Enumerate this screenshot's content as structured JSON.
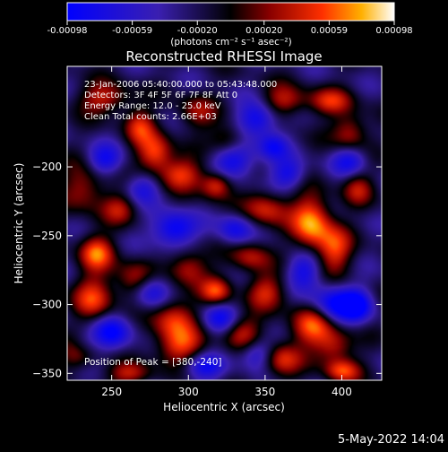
{
  "chart_data": {
    "type": "heatmap",
    "title": "Reconstructed RHESSI Image",
    "xlabel": "Heliocentric X (arcsec)",
    "ylabel": "Heliocentric Y (arcsec)",
    "xlim": [
      221,
      426
    ],
    "ylim": [
      -355,
      -127
    ],
    "x_ticks": [
      250,
      300,
      350,
      400
    ],
    "y_ticks": [
      -200,
      -250,
      -300,
      -350
    ],
    "colorbar": {
      "ticks": [
        -0.00098,
        -0.00059,
        -0.0002,
        0.0002,
        0.00059,
        0.00098
      ],
      "tick_labels": [
        "-0.00098",
        "-0.00059",
        "-0.00020",
        "0.00020",
        "0.00059",
        "0.00098"
      ],
      "unit_label": "(photons cm⁻² s⁻¹ asec⁻²)",
      "range": [
        -0.00098,
        0.00098
      ],
      "colors": [
        "#0000ff",
        "#3a1fb0",
        "#000000",
        "#8a0000",
        "#ff3000",
        "#ffb000",
        "#ffffff"
      ]
    },
    "annotations": [
      "23-Jan-2006 05:40:00.000 to 05:43:48.000",
      "Detectors: 3F 4F 5F 6F 7F 8F  Att 0",
      "Energy Range: 12.0 - 25.0 keV",
      "Clean     Total counts: 2.66E+03"
    ],
    "peak_label": "Position of Peak = [380,-240]",
    "peak": {
      "x": 380,
      "y": -240
    },
    "blobs": [
      {
        "x": 380,
        "y": -240,
        "v": 0.00098,
        "sx": 9,
        "sy": 14
      },
      {
        "x": 395,
        "y": -260,
        "v": 0.0007,
        "sx": 8,
        "sy": 12
      },
      {
        "x": 350,
        "y": -230,
        "v": 0.00065,
        "sx": 10,
        "sy": 9
      },
      {
        "x": 362,
        "y": -152,
        "v": 0.0006,
        "sx": 10,
        "sy": 8
      },
      {
        "x": 392,
        "y": -152,
        "v": 0.0006,
        "sx": 10,
        "sy": 7
      },
      {
        "x": 405,
        "y": -175,
        "v": 0.0006,
        "sx": 8,
        "sy": 10
      },
      {
        "x": 278,
        "y": -190,
        "v": 0.0008,
        "sx": 8,
        "sy": 10
      },
      {
        "x": 295,
        "y": -205,
        "v": 0.0007,
        "sx": 10,
        "sy": 8
      },
      {
        "x": 318,
        "y": -213,
        "v": 0.00075,
        "sx": 7,
        "sy": 7
      },
      {
        "x": 268,
        "y": -170,
        "v": 0.0006,
        "sx": 7,
        "sy": 9
      },
      {
        "x": 245,
        "y": -150,
        "v": 0.0006,
        "sx": 12,
        "sy": 8
      },
      {
        "x": 232,
        "y": -215,
        "v": 0.00055,
        "sx": 10,
        "sy": 12
      },
      {
        "x": 240,
        "y": -262,
        "v": 0.0008,
        "sx": 8,
        "sy": 9
      },
      {
        "x": 265,
        "y": -283,
        "v": 0.00065,
        "sx": 9,
        "sy": 10
      },
      {
        "x": 238,
        "y": -295,
        "v": 0.0007,
        "sx": 9,
        "sy": 12
      },
      {
        "x": 228,
        "y": -335,
        "v": 0.0006,
        "sx": 8,
        "sy": 8
      },
      {
        "x": 300,
        "y": -273,
        "v": 0.00062,
        "sx": 9,
        "sy": 9
      },
      {
        "x": 318,
        "y": -290,
        "v": 0.0007,
        "sx": 7,
        "sy": 7
      },
      {
        "x": 290,
        "y": -310,
        "v": 0.0007,
        "sx": 10,
        "sy": 12
      },
      {
        "x": 295,
        "y": -330,
        "v": 0.00065,
        "sx": 11,
        "sy": 9
      },
      {
        "x": 335,
        "y": -320,
        "v": 0.0006,
        "sx": 9,
        "sy": 9
      },
      {
        "x": 350,
        "y": -290,
        "v": 0.0006,
        "sx": 9,
        "sy": 9
      },
      {
        "x": 360,
        "y": -340,
        "v": 0.0007,
        "sx": 9,
        "sy": 9
      },
      {
        "x": 380,
        "y": -315,
        "v": 0.0008,
        "sx": 10,
        "sy": 10
      },
      {
        "x": 395,
        "y": -330,
        "v": 0.0006,
        "sx": 9,
        "sy": 9
      },
      {
        "x": 400,
        "y": -348,
        "v": 0.0007,
        "sx": 8,
        "sy": 6
      },
      {
        "x": 262,
        "y": -350,
        "v": 0.0006,
        "sx": 10,
        "sy": 6
      },
      {
        "x": 325,
        "y": -180,
        "v": 0.0005,
        "sx": 8,
        "sy": 8
      },
      {
        "x": 340,
        "y": -265,
        "v": 0.00055,
        "sx": 9,
        "sy": 8
      },
      {
        "x": 410,
        "y": -215,
        "v": 0.0005,
        "sx": 7,
        "sy": 9
      },
      {
        "x": 255,
        "y": -230,
        "v": 0.0005,
        "sx": 8,
        "sy": 8
      },
      {
        "x": 305,
        "y": -160,
        "v": 0.00045,
        "sx": 9,
        "sy": 9
      },
      {
        "x": 290,
        "y": -245,
        "v": -0.0008,
        "sx": 10,
        "sy": 9
      },
      {
        "x": 275,
        "y": -290,
        "v": -0.00075,
        "sx": 9,
        "sy": 9
      },
      {
        "x": 330,
        "y": -195,
        "v": -0.0007,
        "sx": 10,
        "sy": 9
      },
      {
        "x": 345,
        "y": -165,
        "v": -0.00075,
        "sx": 9,
        "sy": 9
      },
      {
        "x": 395,
        "y": -300,
        "v": -0.0008,
        "sx": 10,
        "sy": 10
      },
      {
        "x": 410,
        "y": -300,
        "v": -0.0007,
        "sx": 7,
        "sy": 8
      },
      {
        "x": 310,
        "y": -345,
        "v": -0.0006,
        "sx": 9,
        "sy": 7
      },
      {
        "x": 245,
        "y": -195,
        "v": -0.0006,
        "sx": 8,
        "sy": 8
      },
      {
        "x": 250,
        "y": -320,
        "v": -0.0007,
        "sx": 9,
        "sy": 9
      },
      {
        "x": 330,
        "y": -245,
        "v": -0.0006,
        "sx": 8,
        "sy": 8
      },
      {
        "x": 365,
        "y": -205,
        "v": -0.0006,
        "sx": 8,
        "sy": 8
      },
      {
        "x": 375,
        "y": -275,
        "v": -0.0006,
        "sx": 8,
        "sy": 9
      },
      {
        "x": 345,
        "y": -335,
        "v": -0.0006,
        "sx": 8,
        "sy": 8
      },
      {
        "x": 230,
        "y": -330,
        "v": -0.0004,
        "sx": 7,
        "sy": 7
      },
      {
        "x": 405,
        "y": -195,
        "v": -0.0006,
        "sx": 8,
        "sy": 8
      },
      {
        "x": 270,
        "y": -215,
        "v": -0.0005,
        "sx": 8,
        "sy": 8
      },
      {
        "x": 355,
        "y": -185,
        "v": -0.00055,
        "sx": 7,
        "sy": 7
      },
      {
        "x": 320,
        "y": -310,
        "v": -0.0006,
        "sx": 8,
        "sy": 8
      }
    ]
  },
  "footer_timestamp": "5-May-2022 14:04"
}
